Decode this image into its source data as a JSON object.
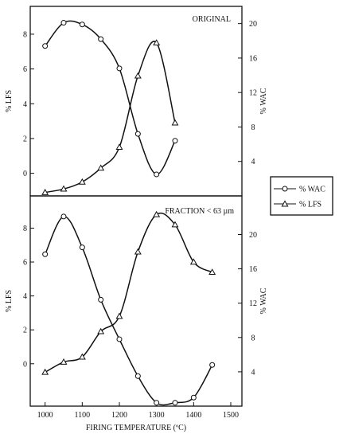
{
  "chart_data": [
    {
      "type": "line",
      "title": "ORIGINAL",
      "ylabel_left": "% LFS",
      "ylabel_right": "% WAC",
      "xlim": [
        960,
        1530
      ],
      "ylim_left": [
        -1.3,
        9.6
      ],
      "ylim_right": [
        0,
        22.0
      ],
      "left_ticks": [
        "0",
        "2",
        "4",
        "6",
        "8"
      ],
      "right_ticks": [
        "4",
        "8",
        "12",
        "16",
        "20"
      ],
      "series": [
        {
          "name": "% WAC",
          "axis": "right",
          "marker": "circle",
          "x": [
            1000,
            1050,
            1100,
            1150,
            1200,
            1250,
            1300,
            1350
          ],
          "y": [
            17.4,
            20.1,
            19.9,
            18.2,
            14.8,
            7.2,
            2.5,
            6.4
          ]
        },
        {
          "name": "% LFS",
          "axis": "left",
          "marker": "triangle",
          "x": [
            1000,
            1050,
            1100,
            1150,
            1200,
            1250,
            1300,
            1350
          ],
          "y": [
            -1.1,
            -0.9,
            -0.5,
            0.3,
            1.5,
            5.6,
            7.5,
            2.9
          ]
        }
      ]
    },
    {
      "type": "line",
      "title": "FRACTION < 63 µm",
      "ylabel_left": "% LFS",
      "ylabel_right": "% WAC",
      "xlabel": "FIRING TEMPERATURE (ºC)",
      "xlim": [
        960,
        1530
      ],
      "ylim_left": [
        -2.5,
        9.9
      ],
      "ylim_right": [
        0,
        24.5
      ],
      "x_ticks": [
        "1000",
        "1100",
        "1200",
        "1300",
        "1400",
        "1500"
      ],
      "left_ticks": [
        "0",
        "2",
        "4",
        "6",
        "8"
      ],
      "right_ticks": [
        "4",
        "8",
        "12",
        "16",
        "20"
      ],
      "series": [
        {
          "name": "% WAC",
          "axis": "right",
          "marker": "circle",
          "x": [
            1000,
            1050,
            1100,
            1150,
            1200,
            1250,
            1300,
            1350,
            1400,
            1450
          ],
          "y": [
            17.7,
            22.1,
            18.5,
            12.4,
            7.8,
            3.5,
            0.4,
            0.4,
            1.0,
            4.8
          ]
        },
        {
          "name": "% LFS",
          "axis": "left",
          "marker": "triangle",
          "x": [
            1000,
            1050,
            1100,
            1150,
            1200,
            1250,
            1300,
            1350,
            1400,
            1450
          ],
          "y": [
            -0.5,
            0.1,
            0.4,
            1.9,
            2.8,
            6.6,
            8.8,
            8.2,
            6.0,
            5.4
          ]
        }
      ]
    }
  ],
  "legend": {
    "wac_label": "% WAC",
    "lfs_label": "% LFS"
  }
}
